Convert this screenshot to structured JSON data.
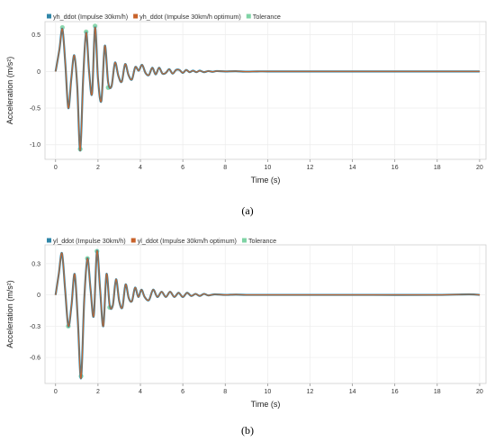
{
  "chart_data": [
    {
      "type": "line",
      "caption": "(a)",
      "xlabel": "Time (s)",
      "ylabel": "Acceleration (m/s²)",
      "xlim": [
        -0.5,
        20.3
      ],
      "ylim": [
        -1.2,
        0.68
      ],
      "xticks": [
        0,
        2,
        4,
        6,
        8,
        10,
        12,
        14,
        16,
        18,
        20
      ],
      "yticks": [
        0.5,
        0,
        -0.5,
        -1.0
      ],
      "ytick_labels": [
        "0.5",
        "0",
        "-0.5",
        "-1.0"
      ],
      "legend_position": "top-left",
      "grid": true,
      "series": [
        {
          "name": "yh_ddot (Impulse 30km/h)",
          "color": "#2f86a8"
        },
        {
          "name": "yh_ddot (Impulse 30km/h optimum)",
          "color": "#c8622a"
        },
        {
          "name": "Tolerance",
          "color": "#7fd3a5"
        }
      ],
      "x": [
        0,
        0.18,
        0.32,
        0.46,
        0.6,
        0.74,
        0.88,
        1.02,
        1.16,
        1.3,
        1.44,
        1.58,
        1.72,
        1.86,
        2.0,
        2.16,
        2.32,
        2.48,
        2.64,
        2.8,
        2.96,
        3.12,
        3.28,
        3.44,
        3.6,
        3.76,
        3.92,
        4.08,
        4.24,
        4.4,
        4.56,
        4.72,
        4.88,
        5.04,
        5.2,
        5.36,
        5.52,
        5.68,
        5.84,
        6.0,
        6.16,
        6.32,
        6.48,
        6.64,
        6.8,
        7.0,
        7.2,
        7.4,
        7.6,
        8.0,
        8.5,
        9.0,
        9.5,
        10.0,
        11.0,
        12.0,
        14.0,
        16.0,
        18.0,
        20.0
      ],
      "values": [
        0.0,
        0.3,
        0.58,
        0.1,
        -0.5,
        -0.1,
        0.22,
        -0.2,
        -1.08,
        -0.1,
        0.53,
        0.0,
        -0.3,
        0.6,
        -0.1,
        -0.4,
        0.35,
        -0.15,
        -0.2,
        0.12,
        -0.06,
        -0.14,
        0.1,
        -0.05,
        -0.11,
        0.06,
        0.01,
        0.09,
        -0.02,
        -0.05,
        0.05,
        -0.04,
        0.05,
        -0.03,
        -0.02,
        0.03,
        -0.03,
        0.02,
        0.02,
        -0.02,
        0.02,
        -0.01,
        0.01,
        -0.01,
        0.01,
        -0.01,
        0.005,
        -0.005,
        0.005,
        0.0,
        0.003,
        -0.003,
        0.0,
        0.0,
        0.0,
        0.0,
        0.0,
        0.0,
        0.0,
        0.0
      ],
      "x_tol": [
        0.32,
        1.16,
        1.44,
        1.86,
        2.48
      ],
      "values_tol": [
        0.6,
        -1.06,
        0.54,
        0.62,
        -0.22
      ]
    },
    {
      "type": "line",
      "caption": "(b)",
      "xlabel": "Time (s)",
      "ylabel": "Acceleration (m/s²)",
      "xlim": [
        -0.5,
        20.3
      ],
      "ylim": [
        -0.85,
        0.48
      ],
      "xticks": [
        0,
        2,
        4,
        6,
        8,
        10,
        12,
        14,
        16,
        18,
        20
      ],
      "yticks": [
        0.3,
        0,
        -0.3,
        -0.6
      ],
      "ytick_labels": [
        "0.3",
        "0",
        "-0.3",
        "-0.6"
      ],
      "legend_position": "top-left",
      "grid": true,
      "series": [
        {
          "name": "yl_ddot (Impulse 30km/h)",
          "color": "#2f86a8"
        },
        {
          "name": "yl_ddot (Impulse 30km/h optimum)",
          "color": "#c8622a"
        },
        {
          "name": "Tolerance",
          "color": "#7fd3a5"
        }
      ],
      "x": [
        0,
        0.15,
        0.3,
        0.45,
        0.6,
        0.75,
        0.9,
        1.05,
        1.2,
        1.35,
        1.5,
        1.65,
        1.8,
        1.95,
        2.1,
        2.25,
        2.4,
        2.55,
        2.7,
        2.85,
        3.0,
        3.15,
        3.3,
        3.45,
        3.6,
        3.75,
        3.9,
        4.05,
        4.2,
        4.4,
        4.6,
        4.8,
        5.0,
        5.2,
        5.4,
        5.6,
        5.8,
        6.0,
        6.2,
        6.4,
        6.6,
        6.8,
        7.0,
        7.2,
        7.5,
        8.0,
        8.5,
        9.0,
        10.0,
        12.0,
        15.0,
        18.0,
        19.5,
        20.0
      ],
      "values": [
        0.0,
        0.2,
        0.4,
        0.05,
        -0.3,
        -0.1,
        0.2,
        -0.25,
        -0.8,
        -0.05,
        0.35,
        0.05,
        -0.2,
        0.42,
        0.05,
        -0.3,
        0.2,
        -0.1,
        -0.1,
        0.15,
        -0.06,
        -0.12,
        0.1,
        -0.03,
        -0.06,
        0.07,
        -0.02,
        0.05,
        -0.02,
        -0.05,
        0.05,
        -0.02,
        0.03,
        -0.02,
        0.03,
        -0.02,
        0.02,
        -0.02,
        0.02,
        -0.01,
        0.01,
        -0.01,
        0.01,
        -0.005,
        0.005,
        0.0,
        0.003,
        0.0,
        0.0,
        0.0,
        0.0,
        0.0,
        0.005,
        0.0
      ],
      "x_tol": [
        0.6,
        1.2,
        1.5,
        1.95,
        2.55
      ],
      "values_tol": [
        -0.3,
        -0.78,
        0.35,
        0.42,
        -0.12
      ]
    }
  ]
}
